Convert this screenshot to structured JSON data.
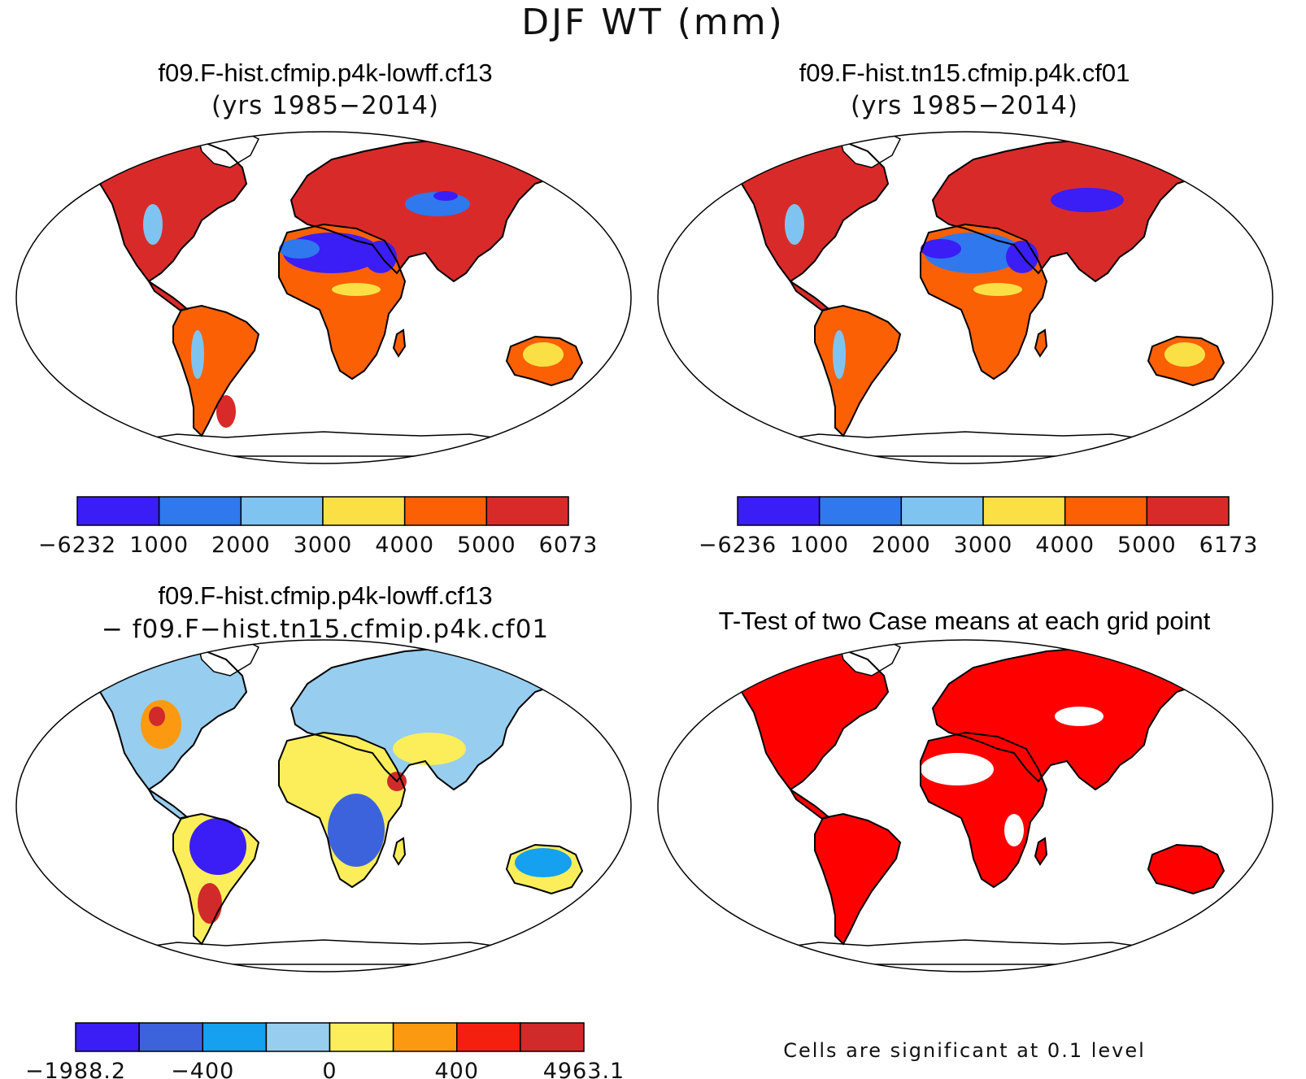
{
  "figure": {
    "title": "DJF WT (mm)"
  },
  "panels": [
    {
      "id": "case1",
      "title": "f09.F-hist.cfmip.p4k-lowff.cf13",
      "subtitle": "(yrs 1985−2014)",
      "colorbar": {
        "colors": [
          "#3a1ef5",
          "#2f78ee",
          "#7fc4f0",
          "#fbe045",
          "#fb6005",
          "#d92a2a"
        ],
        "labels": [
          "−6232",
          "1000",
          "2000",
          "3000",
          "4000",
          "5000",
          "6073"
        ]
      }
    },
    {
      "id": "case2",
      "title": "f09.F-hist.tn15.cfmip.p4k.cf01",
      "subtitle": "(yrs 1985−2014)",
      "colorbar": {
        "colors": [
          "#3a1ef5",
          "#2f78ee",
          "#7fc4f0",
          "#fbe045",
          "#fb6005",
          "#d92a2a"
        ],
        "labels": [
          "−6236",
          "1000",
          "2000",
          "3000",
          "4000",
          "5000",
          "6173"
        ]
      }
    },
    {
      "id": "difference",
      "title": "f09.F-hist.cfmip.p4k-lowff.cf13",
      "subtitle": "− f09.F−hist.tn15.cfmip.p4k.cf01",
      "colorbar": {
        "colors": [
          "#3a1ef5",
          "#3d63dc",
          "#15a0f0",
          "#97cdee",
          "#fbee5a",
          "#fb9a10",
          "#f51f0f",
          "#d02a2a"
        ],
        "labels": [
          "−1988.2",
          "−400",
          "0",
          "400",
          "4963.1"
        ]
      }
    },
    {
      "id": "ttest",
      "title": "T-Test of two Case means at each grid point",
      "note": "Cells are significant at 0.1 level",
      "significant_color": "#ff0000"
    }
  ]
}
